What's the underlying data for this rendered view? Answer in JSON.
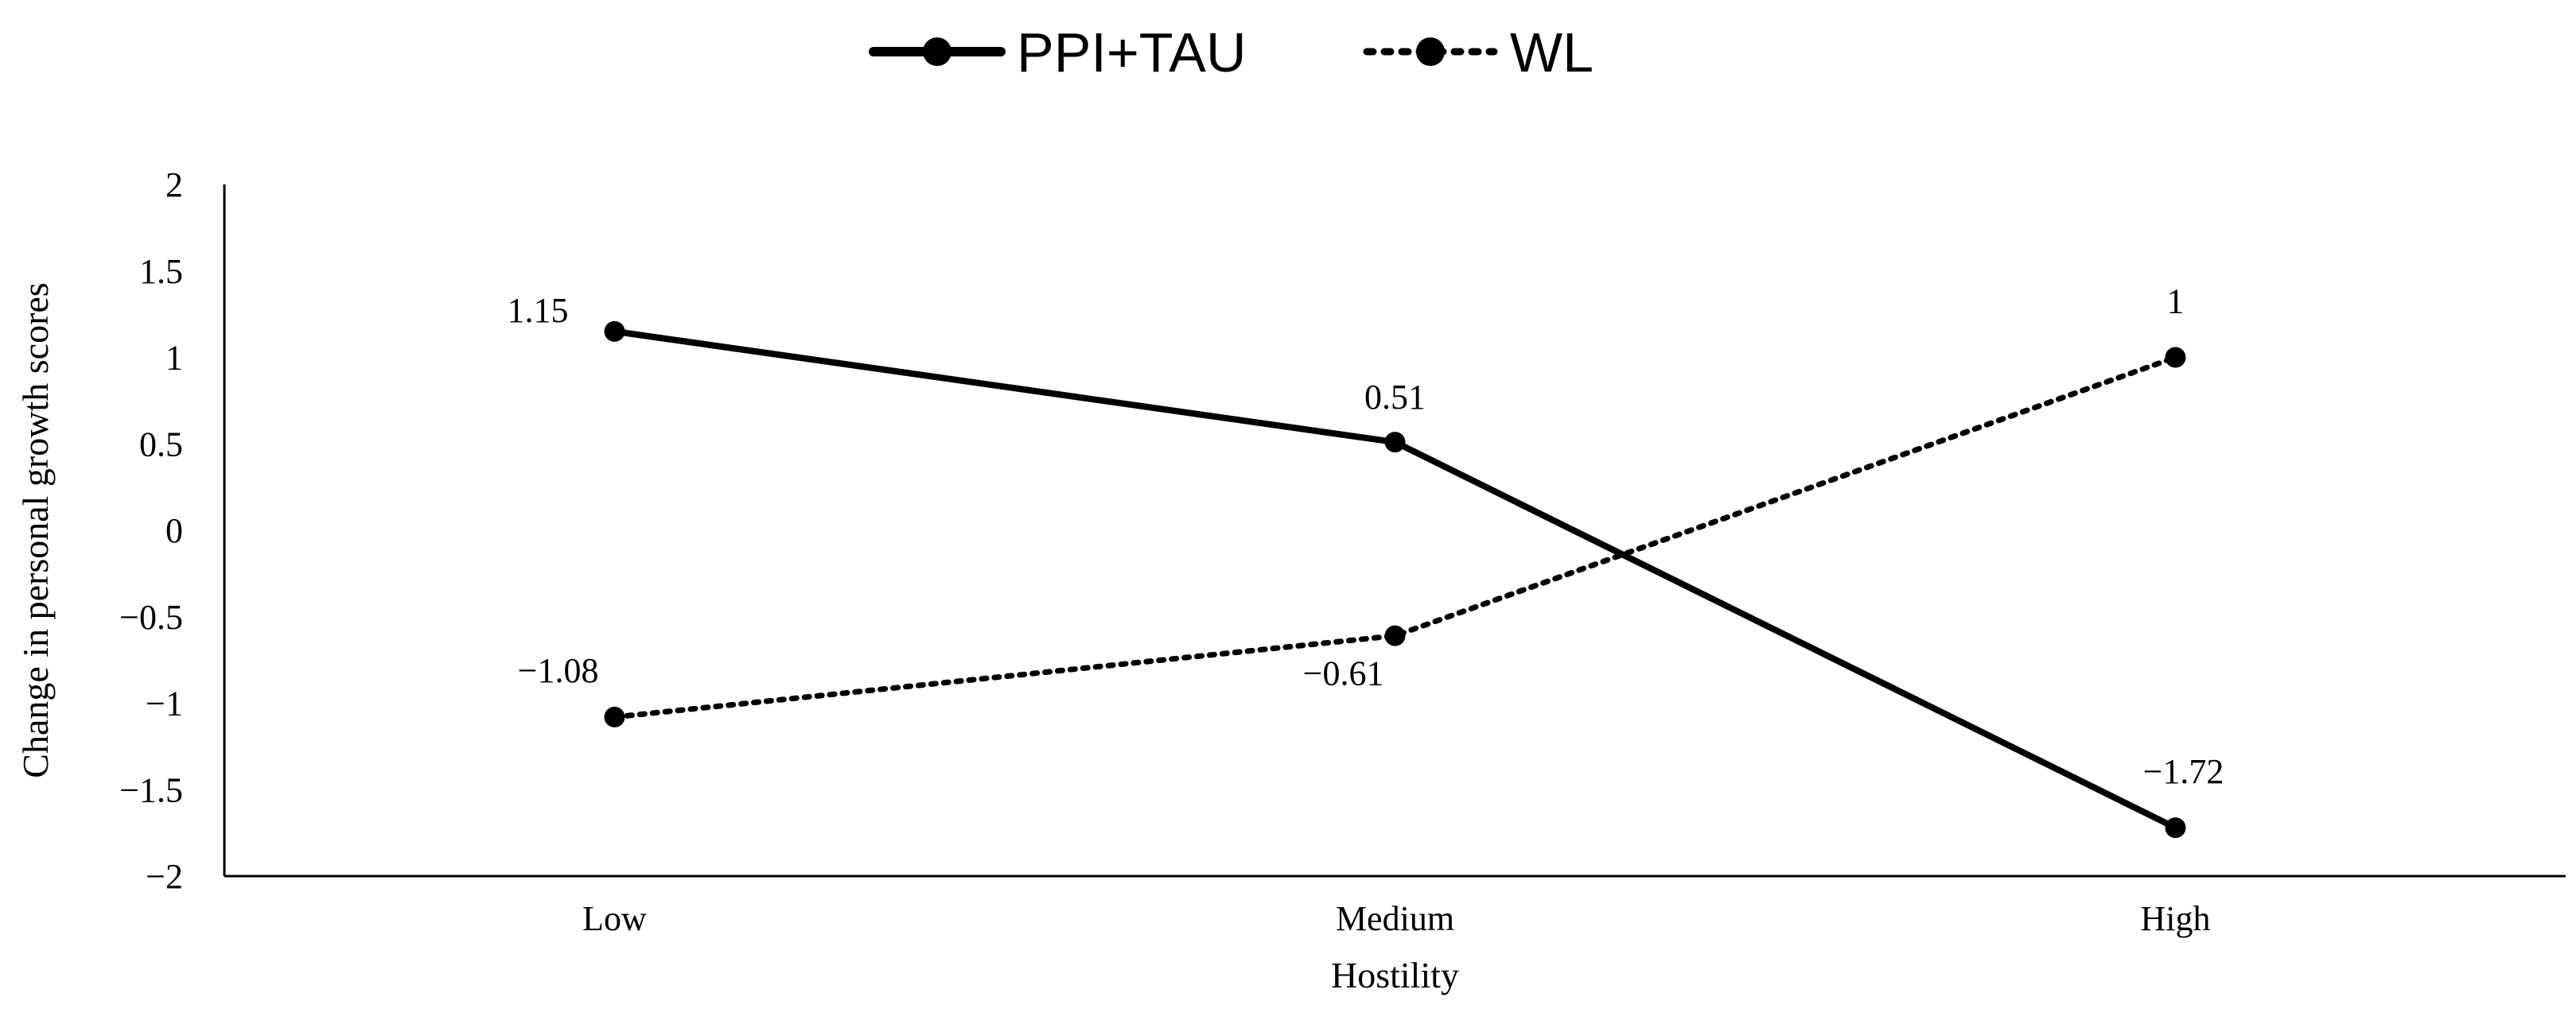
{
  "chart_data": {
    "type": "line",
    "categories": [
      "Low",
      "Medium",
      "High"
    ],
    "series": [
      {
        "name": "PPI+TAU",
        "values": [
          1.15,
          0.51,
          -1.72
        ],
        "labels": [
          "1.15",
          "0.51",
          "−1.72"
        ],
        "style": "solid",
        "color": "#000000"
      },
      {
        "name": "WL",
        "values": [
          -1.08,
          -0.61,
          1
        ],
        "labels": [
          "−1.08",
          "−0.61",
          "1"
        ],
        "style": "dotted",
        "color": "#000000"
      }
    ],
    "xlabel": "Hostility",
    "ylabel": "Change in personal growth scores",
    "ylim": [
      -2,
      2
    ],
    "yticks": [
      -2,
      -1.5,
      -1,
      -0.5,
      0,
      0.5,
      1,
      1.5,
      2
    ],
    "ytick_labels": [
      "−2",
      "−1.5",
      "−1",
      "−0.5",
      "0",
      "0.5",
      "1",
      "1.5",
      "2"
    ],
    "grid": false,
    "legend_position": "top-center"
  }
}
